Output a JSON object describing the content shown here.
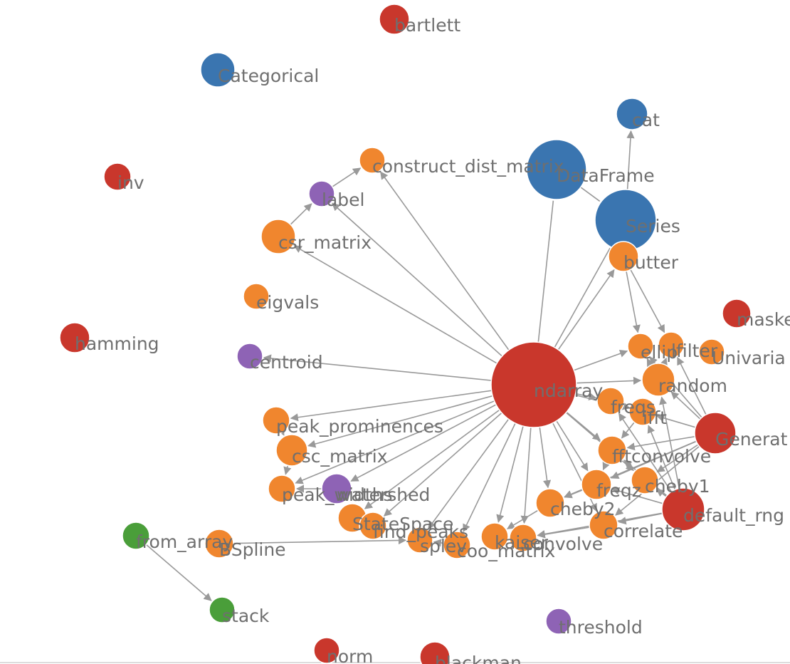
{
  "nodes": [
    {
      "label": "bartlett"
    },
    {
      "label": "Categorical"
    },
    {
      "label": "cat"
    },
    {
      "label": "inv"
    },
    {
      "label": "construct_dist_matrix"
    },
    {
      "label": "DataFrame"
    },
    {
      "label": "label"
    },
    {
      "label": "Series"
    },
    {
      "label": "csr_matrix"
    },
    {
      "label": "butter"
    },
    {
      "label": "eigvals"
    },
    {
      "label": "maske"
    },
    {
      "label": "hamming"
    },
    {
      "label": "centroid"
    },
    {
      "label": "ndarray"
    },
    {
      "label": "ellip"
    },
    {
      "label": "lfilter"
    },
    {
      "label": "Univaria"
    },
    {
      "label": "random"
    },
    {
      "label": "freqs"
    },
    {
      "label": "ifft"
    },
    {
      "label": "Generat"
    },
    {
      "label": "fftconvolve"
    },
    {
      "label": "cheby1"
    },
    {
      "label": "freqz"
    },
    {
      "label": "default_rng"
    },
    {
      "label": "peak_prominences"
    },
    {
      "label": "csc_matrix"
    },
    {
      "label": "peak_widths"
    },
    {
      "label": "watershed"
    },
    {
      "label": "cheby2"
    },
    {
      "label": "correlate"
    },
    {
      "label": "StateSpace"
    },
    {
      "label": "find_peaks"
    },
    {
      "label": "splev"
    },
    {
      "label": "coo_matrix"
    },
    {
      "label": "kaiser"
    },
    {
      "label": "convolve"
    },
    {
      "label": "from_array"
    },
    {
      "label": "BSpline"
    },
    {
      "label": "stack"
    },
    {
      "label": "threshold"
    },
    {
      "label": "norm"
    },
    {
      "label": "blackman"
    }
  ]
}
